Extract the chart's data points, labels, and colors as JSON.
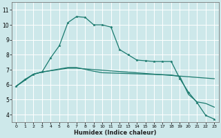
{
  "background_color": "#cde8ea",
  "grid_color": "#ffffff",
  "line_color": "#1a7a6e",
  "xlabel": "Humidex (Indice chaleur)",
  "ylim": [
    3.5,
    11.5
  ],
  "xlim": [
    -0.5,
    23.5
  ],
  "yticks": [
    4,
    5,
    6,
    7,
    8,
    9,
    10,
    11
  ],
  "xticks": [
    0,
    1,
    2,
    3,
    4,
    5,
    6,
    7,
    8,
    9,
    10,
    11,
    12,
    13,
    14,
    15,
    16,
    17,
    18,
    19,
    20,
    21,
    22,
    23
  ],
  "line1_x": [
    0,
    1,
    2,
    3,
    4,
    5,
    6,
    7,
    8,
    9,
    10,
    11,
    12,
    13,
    14,
    15,
    16,
    17,
    18,
    19,
    20,
    21,
    22,
    23
  ],
  "line1_y": [
    5.9,
    6.35,
    6.7,
    6.85,
    7.8,
    8.6,
    10.15,
    10.55,
    10.5,
    10.0,
    10.0,
    9.85,
    8.35,
    8.0,
    7.65,
    7.6,
    7.55,
    7.55,
    7.55,
    6.4,
    5.5,
    4.8,
    3.95,
    3.7
  ],
  "line2_x": [
    0,
    2,
    3,
    6,
    7,
    9,
    10,
    18,
    19,
    20,
    21,
    22,
    23
  ],
  "line2_y": [
    5.9,
    6.7,
    6.85,
    7.15,
    7.15,
    6.9,
    6.8,
    6.65,
    6.55,
    5.35,
    4.85,
    4.75,
    4.5
  ],
  "line3_x": [
    0,
    2,
    3,
    6,
    7,
    23
  ],
  "line3_y": [
    5.9,
    6.7,
    6.85,
    7.1,
    7.1,
    6.4
  ]
}
